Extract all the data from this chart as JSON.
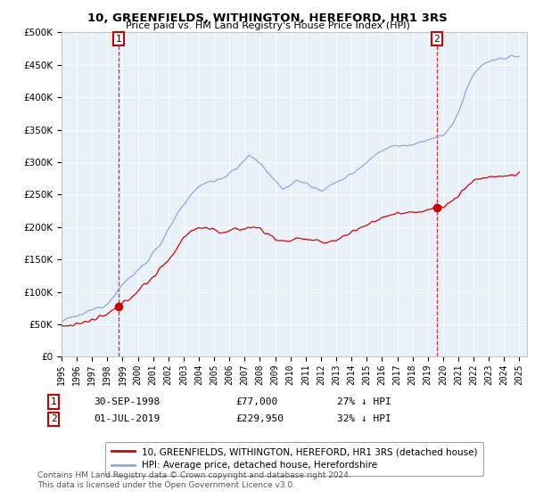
{
  "title": "10, GREENFIELDS, WITHINGTON, HEREFORD, HR1 3RS",
  "subtitle": "Price paid vs. HM Land Registry's House Price Index (HPI)",
  "sale1_date": "30-SEP-1998",
  "sale1_price": 77000,
  "sale1_label": "27% ↓ HPI",
  "sale2_date": "01-JUL-2019",
  "sale2_price": 229950,
  "sale2_label": "32% ↓ HPI",
  "legend_property": "10, GREENFIELDS, WITHINGTON, HEREFORD, HR1 3RS (detached house)",
  "legend_hpi": "HPI: Average price, detached house, Herefordshire",
  "footnote": "Contains HM Land Registry data © Crown copyright and database right 2024.\nThis data is licensed under the Open Government Licence v3.0.",
  "property_color": "#dd0000",
  "hpi_color": "#88aadd",
  "sale_marker_color": "#cc0000",
  "dashed_line_color": "#cc0000",
  "ylim_min": 0,
  "ylim_max": 500000,
  "background_color": "#ffffff",
  "plot_bg_color": "#e8f0f8",
  "grid_color": "#ffffff"
}
